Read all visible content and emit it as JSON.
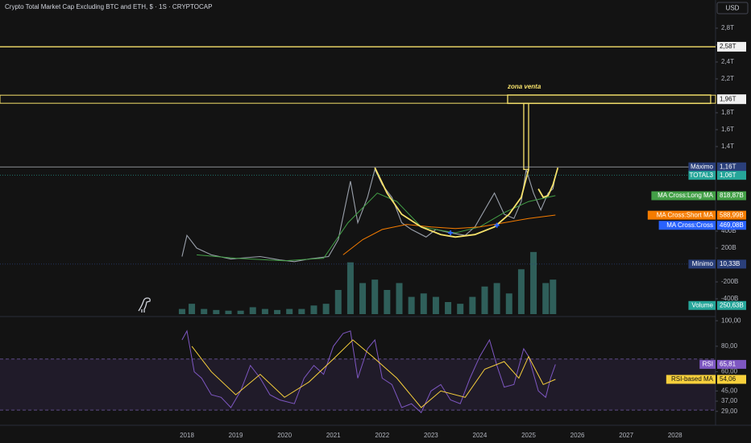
{
  "chart_data": [
    {
      "type": "line",
      "title": "Crypto Total Market Cap Excluding BTC and ETH, $ · 1S · CRYPTOCAP",
      "currency": "USD",
      "xlim": [
        2014.17,
        2028.83
      ],
      "xticks": [
        2018,
        2019,
        2020,
        2021,
        2022,
        2023,
        2024,
        2025,
        2026,
        2027,
        2028
      ],
      "ylim": [
        -0.581,
        3.133
      ],
      "yticks": [
        {
          "value": 2.8,
          "label": "2,8T"
        },
        {
          "value": 2.6,
          "label": "2,6T"
        },
        {
          "value": 2.4,
          "label": "2,4T"
        },
        {
          "value": 2.2,
          "label": "2,2T"
        },
        {
          "value": 1.8,
          "label": "1,8T"
        },
        {
          "value": 1.6,
          "label": "1,6T"
        },
        {
          "value": 1.4,
          "label": "1,4T"
        },
        {
          "value": 0.4,
          "label": "400B"
        },
        {
          "value": 0.2,
          "label": "200B"
        },
        {
          "value": -0.2,
          "label": "-200B"
        },
        {
          "value": -0.4,
          "label": "-400B"
        }
      ],
      "series": [
        {
          "name": "TOTAL3",
          "color": "#9aa0ab",
          "x": [
            2017.9,
            2018.0,
            2018.2,
            2018.5,
            2018.9,
            2019.3,
            2019.5,
            2019.9,
            2020.2,
            2020.5,
            2020.9,
            2021.1,
            2021.35,
            2021.5,
            2021.7,
            2021.85,
            2022.0,
            2022.2,
            2022.4,
            2022.6,
            2022.9,
            2023.1,
            2023.4,
            2023.7,
            2023.9,
            2024.2,
            2024.3,
            2024.5,
            2024.7,
            2024.85,
            2024.95,
            2025.1,
            2025.25,
            2025.4,
            2025.5,
            2025.55
          ],
          "values": [
            0.1,
            0.35,
            0.2,
            0.12,
            0.07,
            0.09,
            0.1,
            0.06,
            0.04,
            0.07,
            0.1,
            0.3,
            0.99,
            0.5,
            0.8,
            1.13,
            0.95,
            0.8,
            0.5,
            0.42,
            0.33,
            0.42,
            0.38,
            0.35,
            0.45,
            0.75,
            0.85,
            0.6,
            0.55,
            0.75,
            1.13,
            0.85,
            0.65,
            0.85,
            0.9,
            1.06
          ]
        },
        {
          "name": "MA Cross:Long MA",
          "color": "#43a047",
          "x": [
            2018.2,
            2019.0,
            2020.0,
            2020.8,
            2021.3,
            2021.9,
            2022.3,
            2022.8,
            2023.5,
            2024.0,
            2024.5,
            2025.0,
            2025.55
          ],
          "values": [
            0.12,
            0.08,
            0.05,
            0.08,
            0.5,
            0.85,
            0.75,
            0.45,
            0.38,
            0.45,
            0.62,
            0.75,
            0.82
          ]
        },
        {
          "name": "MA Cross:Short MA",
          "color": "#f57c00",
          "x": [
            2021.2,
            2021.6,
            2022.0,
            2022.5,
            2023.0,
            2023.5,
            2024.0,
            2024.5,
            2025.0,
            2025.55
          ],
          "values": [
            0.12,
            0.3,
            0.42,
            0.48,
            0.45,
            0.43,
            0.45,
            0.5,
            0.55,
            0.59
          ]
        }
      ],
      "crosses": {
        "color": "#2962ff",
        "x": [
          2023.4,
          2024.35
        ],
        "values": [
          0.38,
          0.47
        ]
      },
      "volume": {
        "name": "Volume",
        "color": "#2f5f5a",
        "ylim": [
          0,
          2100
        ],
        "x": [
          2017.9,
          2018.1,
          2018.35,
          2018.6,
          2018.85,
          2019.1,
          2019.35,
          2019.6,
          2019.85,
          2020.1,
          2020.35,
          2020.6,
          2020.85,
          2021.1,
          2021.35,
          2021.6,
          2021.85,
          2022.1,
          2022.35,
          2022.6,
          2022.85,
          2023.1,
          2023.35,
          2023.6,
          2023.85,
          2024.1,
          2024.35,
          2024.6,
          2024.85,
          2025.1,
          2025.35,
          2025.5
        ],
        "values": [
          150,
          300,
          150,
          120,
          100,
          100,
          200,
          150,
          120,
          150,
          150,
          250,
          300,
          700,
          1500,
          900,
          1000,
          700,
          900,
          500,
          600,
          500,
          350,
          300,
          500,
          800,
          900,
          600,
          1300,
          1800,
          900,
          1000
        ],
        "last": 250.63,
        "last_label": "250,63B"
      },
      "price_labels": [
        {
          "name": "Máximo",
          "value": 1.16,
          "label": "1,16T",
          "color": "#2a3f7a",
          "line": "solid"
        },
        {
          "name": "TOTAL3",
          "value": 1.06,
          "label": "1,06T",
          "color": "#26a69a",
          "line": "dotted"
        },
        {
          "name": "MA Cross:Long MA",
          "value": 0.81887,
          "label": "818,87B",
          "color": "#43a047"
        },
        {
          "name": "MA Cross:Short MA",
          "value": 0.58899,
          "label": "588,99B",
          "color": "#f57c00"
        },
        {
          "name": "MA Cross:Cross",
          "value": 0.46908,
          "label": "469,08B",
          "color": "#2962ff"
        },
        {
          "name": "Mínimo",
          "value": 0.01033,
          "label": "10,33B",
          "color": "#2a3f7a",
          "line": "dotted"
        }
      ],
      "levels": [
        {
          "value": 2.58,
          "label": "2,58T"
        },
        {
          "value": 1.96,
          "label": "1,96T"
        }
      ],
      "sell_zone": {
        "label": "zona venta",
        "x": [
          2024.57,
          2028.73
        ],
        "y": [
          1.91,
          2.01
        ]
      },
      "spike": {
        "x": [
          2024.9,
          2025.0
        ],
        "y": [
          1.13,
          1.91
        ]
      },
      "cups": [
        {
          "x": [
            2021.85,
            2022.1,
            2022.4,
            2022.8,
            2023.2,
            2023.5,
            2023.9,
            2024.3,
            2024.6,
            2024.85,
            2025.0
          ],
          "values": [
            1.15,
            0.85,
            0.6,
            0.45,
            0.36,
            0.33,
            0.36,
            0.45,
            0.6,
            0.8,
            1.13
          ]
        },
        {
          "x": [
            2025.2,
            2025.3,
            2025.4,
            2025.5,
            2025.6
          ],
          "values": [
            0.9,
            0.8,
            0.82,
            0.95,
            1.15
          ]
        }
      ]
    },
    {
      "type": "line",
      "ylim": [
        20,
        102
      ],
      "yticks": [
        {
          "value": 100,
          "label": "100,00"
        },
        {
          "value": 80,
          "label": "80,00"
        },
        {
          "value": 60,
          "label": "60,00"
        },
        {
          "value": 45,
          "label": "45,00"
        },
        {
          "value": 37,
          "label": "37,00"
        },
        {
          "value": 29,
          "label": "29,00"
        }
      ],
      "band": [
        30,
        70
      ],
      "series": [
        {
          "name": "RSI",
          "color": "#7e57c2",
          "x": [
            2017.9,
            2018.0,
            2018.15,
            2018.3,
            2018.5,
            2018.7,
            2018.9,
            2019.1,
            2019.3,
            2019.5,
            2019.7,
            2019.9,
            2020.2,
            2020.4,
            2020.6,
            2020.8,
            2021.0,
            2021.2,
            2021.35,
            2021.5,
            2021.7,
            2021.85,
            2022.0,
            2022.2,
            2022.4,
            2022.6,
            2022.8,
            2023.0,
            2023.2,
            2023.4,
            2023.6,
            2023.8,
            2024.0,
            2024.2,
            2024.35,
            2024.5,
            2024.7,
            2024.9,
            2025.0,
            2025.2,
            2025.35,
            2025.45,
            2025.55
          ],
          "values": [
            85,
            92,
            60,
            55,
            42,
            40,
            32,
            45,
            65,
            55,
            42,
            38,
            35,
            55,
            65,
            58,
            80,
            90,
            92,
            55,
            78,
            85,
            55,
            50,
            32,
            35,
            28,
            45,
            50,
            38,
            35,
            55,
            72,
            85,
            65,
            48,
            50,
            78,
            72,
            45,
            40,
            55,
            65.81
          ],
          "label": "65,81"
        },
        {
          "name": "RSI-based MA",
          "color": "#f7d03c",
          "x": [
            2018.1,
            2018.5,
            2019.0,
            2019.5,
            2020.0,
            2020.5,
            2021.0,
            2021.4,
            2021.8,
            2022.3,
            2022.8,
            2023.2,
            2023.7,
            2024.1,
            2024.5,
            2024.8,
            2025.0,
            2025.3,
            2025.55
          ],
          "values": [
            80,
            60,
            42,
            58,
            40,
            52,
            70,
            85,
            72,
            55,
            32,
            45,
            40,
            62,
            68,
            55,
            72,
            50,
            54.06
          ],
          "label": "54,06"
        }
      ]
    }
  ]
}
